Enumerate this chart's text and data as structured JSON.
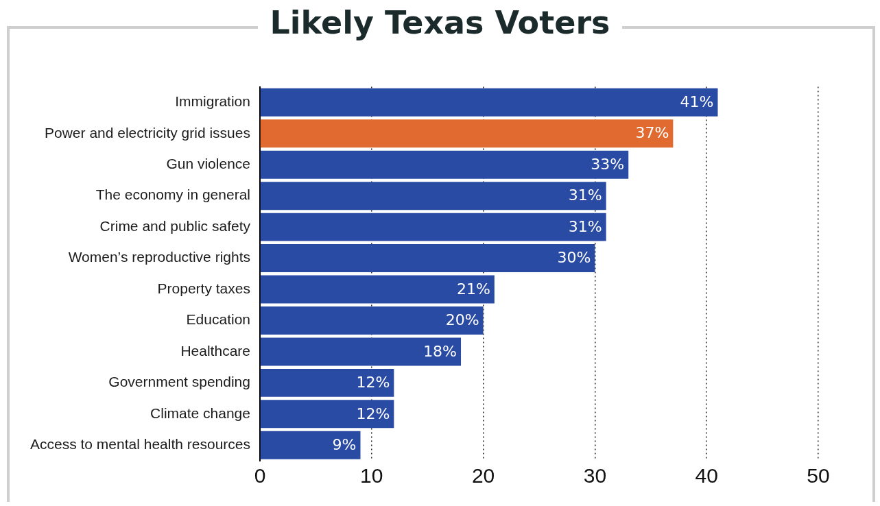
{
  "chart_data": {
    "type": "bar",
    "orientation": "horizontal",
    "title": "Likely Texas Voters",
    "categories": [
      "Immigration",
      "Power and electricity grid issues",
      "Gun violence",
      "The economy in general",
      "Crime and public safety",
      "Women’s reproductive rights",
      "Property taxes",
      "Education",
      "Healthcare",
      "Government spending",
      "Climate change",
      "Access to mental health resources"
    ],
    "values": [
      41,
      37,
      33,
      31,
      31,
      30,
      21,
      20,
      18,
      12,
      12,
      9
    ],
    "colors": [
      "#2a4ba4",
      "#e06a30",
      "#2a4ba4",
      "#2a4ba4",
      "#2a4ba4",
      "#2a4ba4",
      "#2a4ba4",
      "#2a4ba4",
      "#2a4ba4",
      "#2a4ba4",
      "#2a4ba4",
      "#2a4ba4"
    ],
    "value_labels": [
      "41%",
      "37%",
      "33%",
      "31%",
      "31%",
      "30%",
      "21%",
      "20%",
      "18%",
      "12%",
      "12%",
      "9%"
    ],
    "xlim": [
      0,
      50
    ],
    "xticks": [
      0,
      10,
      20,
      30,
      40,
      50
    ],
    "grid": "x",
    "legend": false
  }
}
